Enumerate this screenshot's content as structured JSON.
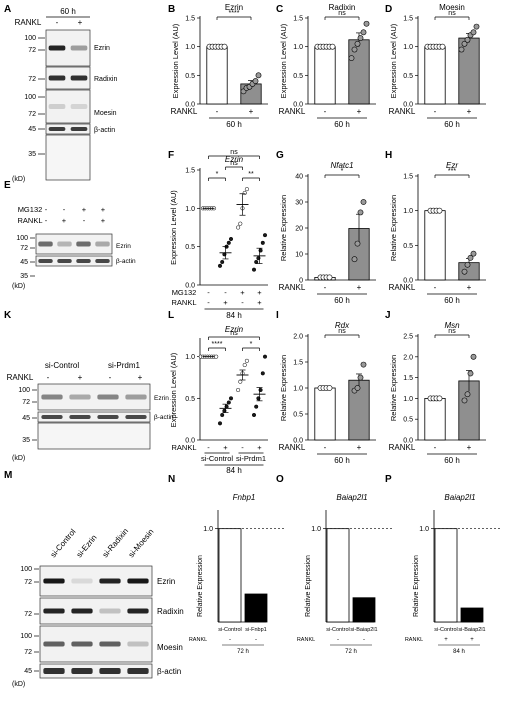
{
  "panel_letters": [
    "A",
    "B",
    "C",
    "D",
    "E",
    "F",
    "G",
    "H",
    "I",
    "J",
    "K",
    "L",
    "M",
    "N",
    "O",
    "P"
  ],
  "colors": {
    "control": "#ffffff",
    "treated_bar": "#8f8f8f",
    "i_j_bar": "#8f8f8f",
    "np_treated_bar": "#000000",
    "point_grey": "#9a9a9a",
    "point_black": "#1a1a1a"
  },
  "blot_A": {
    "time": "60 h",
    "rankl": "RANKL",
    "signs": [
      "-",
      "+"
    ],
    "markers": [
      {
        "label": "100"
      },
      {
        "label": "72"
      },
      {
        "label": "72"
      },
      {
        "label": "100"
      },
      {
        "label": "72"
      },
      {
        "label": "45"
      },
      {
        "label": "35"
      }
    ],
    "bands": [
      "Ezrin",
      "Radixin",
      "Moesin",
      "β-actin"
    ],
    "unit": "(kD)"
  },
  "blot_E": {
    "rows": [
      {
        "label": "MG132",
        "signs": [
          "-",
          "-",
          "+",
          "+"
        ]
      },
      {
        "label": "RANKL",
        "signs": [
          "-",
          "+",
          "-",
          "+"
        ]
      }
    ],
    "markers": [
      "100",
      "72",
      "45",
      "35"
    ],
    "bands": [
      "Ezrin",
      "β-actin"
    ],
    "unit": "(kD)"
  },
  "blot_K": {
    "groups": [
      "si-Control",
      "si-Prdm1"
    ],
    "rankl": "RANKL",
    "signs": [
      "-",
      "+",
      "-",
      "+"
    ],
    "markers": [
      "100",
      "72",
      "45",
      "35"
    ],
    "bands": [
      "Ezrin",
      "β-actin"
    ],
    "unit": "(kD)"
  },
  "blot_M": {
    "lanes": [
      "si-Control",
      "si-Ezrin",
      "si-Radixin",
      "si-Moesin"
    ],
    "markers": [
      "100",
      "72",
      "72",
      "100",
      "72",
      "45"
    ],
    "bands": [
      "Ezrin",
      "Radixin",
      "Moesin",
      "β-actin"
    ],
    "unit": "(kD)"
  },
  "chart_data": [
    {
      "panel": "B",
      "type": "bar",
      "title": "Ezrin",
      "ylabel": "Expression Level (AU)",
      "ylim": [
        0,
        1.5
      ],
      "yticks": [
        "0.0",
        "0.5",
        "1.0",
        "1.5"
      ],
      "categories": [
        "-",
        "+"
      ],
      "values": [
        1.0,
        0.35
      ],
      "errors": [
        0,
        0.06
      ],
      "sig": "****",
      "xrow_label": "RANKL",
      "time": "60 h",
      "points": [
        [
          1,
          1,
          1,
          1,
          1,
          1
        ],
        [
          0.22,
          0.28,
          0.3,
          0.35,
          0.4,
          0.5
        ]
      ]
    },
    {
      "panel": "C",
      "type": "bar",
      "title": "Radixin",
      "ylabel": "Expression Level (AU)",
      "ylim": [
        0,
        1.5
      ],
      "yticks": [
        "0.0",
        "0.5",
        "1.0",
        "1.5"
      ],
      "categories": [
        "-",
        "+"
      ],
      "values": [
        1.0,
        1.12
      ],
      "errors": [
        0,
        0.12
      ],
      "sig": "ns",
      "xrow_label": "RANKL",
      "time": "60 h",
      "points": [
        [
          1,
          1,
          1,
          1,
          1,
          1
        ],
        [
          0.8,
          0.95,
          1.05,
          1.15,
          1.25,
          1.4
        ]
      ]
    },
    {
      "panel": "D",
      "type": "bar",
      "title": "Moesin",
      "ylabel": "Expression Level (AU)",
      "ylim": [
        0,
        1.5
      ],
      "yticks": [
        "0.0",
        "0.5",
        "1.0",
        "1.5"
      ],
      "categories": [
        "-",
        "+"
      ],
      "values": [
        1.0,
        1.15
      ],
      "errors": [
        0,
        0.08
      ],
      "sig": "ns",
      "xrow_label": "RANKL",
      "time": "60 h",
      "points": [
        [
          1,
          1,
          1,
          1,
          1,
          1
        ],
        [
          0.95,
          1.05,
          1.12,
          1.2,
          1.25,
          1.35
        ]
      ]
    },
    {
      "panel": "F",
      "type": "scatter",
      "title": "Ezrin",
      "ylabel": "Expression Level (AU)",
      "ylim": [
        0,
        1.5
      ],
      "yticks": [
        "0.0",
        "0.5",
        "1.0",
        "1.5"
      ],
      "rows": [
        {
          "label": "MG132",
          "signs": [
            "-",
            "-",
            "+",
            "+"
          ]
        },
        {
          "label": "RANKL",
          "signs": [
            "-",
            "+",
            "-",
            "+"
          ]
        }
      ],
      "time": "84 h",
      "means": [
        1.0,
        0.42,
        1.05,
        0.38
      ],
      "sems": [
        0,
        0.08,
        0.14,
        0.1
      ],
      "points": [
        [
          1,
          1,
          1,
          1,
          1,
          1
        ],
        [
          0.25,
          0.3,
          0.4,
          0.5,
          0.55,
          0.6
        ],
        [
          0.75,
          0.8,
          1.0,
          1.2,
          1.25
        ],
        [
          0.2,
          0.3,
          0.35,
          0.45,
          0.55,
          0.65
        ]
      ],
      "sigs": [
        {
          "a": 0,
          "b": 1,
          "label": "*",
          "level": 1
        },
        {
          "a": 1,
          "b": 2,
          "label": "ns",
          "level": 2
        },
        {
          "a": 2,
          "b": 3,
          "label": "**",
          "level": 1
        },
        {
          "a": 0,
          "b": 3,
          "label": "ns",
          "level": 3
        }
      ]
    },
    {
      "panel": "G",
      "type": "bar",
      "title": "Nfatc1",
      "ylabel": "Relative Expression",
      "ylim": [
        0,
        40
      ],
      "yticks": [
        "0",
        "10",
        "20",
        "30",
        "40"
      ],
      "categories": [
        "-",
        "+"
      ],
      "values": [
        1.0,
        19.8
      ],
      "errors": [
        0,
        5.5
      ],
      "sig": "*",
      "xrow_label": "RANKL",
      "time": "60 h",
      "points": [
        [
          1,
          1,
          1,
          1
        ],
        [
          8,
          14,
          26,
          30
        ]
      ]
    },
    {
      "panel": "H",
      "type": "bar",
      "title": "Ezr",
      "ylabel": "Relative Expression",
      "ylim": [
        0,
        1.5
      ],
      "yticks": [
        "0.0",
        "0.5",
        "1.0",
        "1.5"
      ],
      "categories": [
        "-",
        "+"
      ],
      "values": [
        1.0,
        0.25
      ],
      "errors": [
        0,
        0.06
      ],
      "sig": "***",
      "xrow_label": "RANKL",
      "time": "60 h",
      "points": [
        [
          1,
          1,
          1,
          1
        ],
        [
          0.12,
          0.22,
          0.32,
          0.38
        ]
      ]
    },
    {
      "panel": "L",
      "type": "scatter",
      "title": "Ezrin",
      "ylabel": "Expression Level (AU)",
      "ylim": [
        0,
        1.2
      ],
      "yticks": [
        "0.0",
        "0.5",
        "1.0"
      ],
      "groups": [
        "si-Control",
        "si-Prdm1"
      ],
      "signs": [
        "-",
        "+",
        "-",
        "+"
      ],
      "xrow_label": "RANKL",
      "time": "84 h",
      "means": [
        1.0,
        0.38,
        0.78,
        0.55
      ],
      "sems": [
        0,
        0.05,
        0.06,
        0.08
      ],
      "points": [
        [
          1,
          1,
          1,
          1,
          1,
          1,
          1,
          1
        ],
        [
          0.2,
          0.3,
          0.35,
          0.4,
          0.45,
          0.5
        ],
        [
          0.6,
          0.7,
          0.8,
          0.9,
          0.95
        ],
        [
          0.3,
          0.4,
          0.5,
          0.6,
          0.8,
          1.0
        ]
      ],
      "sigs": [
        {
          "a": 0,
          "b": 1,
          "label": "****",
          "level": 1
        },
        {
          "a": 2,
          "b": 3,
          "label": "*",
          "level": 1
        },
        {
          "a": 0,
          "b": 3,
          "label": "ns",
          "level": 2
        }
      ]
    },
    {
      "panel": "I",
      "type": "bar",
      "title": "Rdx",
      "ylabel": "Relative Expression",
      "ylim": [
        0,
        2.0
      ],
      "yticks": [
        "0.0",
        "0.5",
        "1.0",
        "1.5",
        "2.0"
      ],
      "categories": [
        "-",
        "+"
      ],
      "values": [
        1.0,
        1.15
      ],
      "errors": [
        0,
        0.12
      ],
      "sig": "ns",
      "xrow_label": "RANKL",
      "time": "60 h",
      "points": [
        [
          1,
          1,
          1,
          1
        ],
        [
          0.95,
          1.0,
          1.2,
          1.45
        ]
      ]
    },
    {
      "panel": "J",
      "type": "bar",
      "title": "Msn",
      "ylabel": "Relative Expression",
      "ylim": [
        0,
        2.5
      ],
      "yticks": [
        "0.0",
        "0.5",
        "1.0",
        "1.5",
        "2.0",
        "2.5"
      ],
      "categories": [
        "-",
        "+"
      ],
      "values": [
        1.0,
        1.42
      ],
      "errors": [
        0,
        0.25
      ],
      "sig": "ns",
      "xrow_label": "RANKL",
      "time": "60 h",
      "points": [
        [
          1,
          1,
          1,
          1
        ],
        [
          0.95,
          1.1,
          1.6,
          2.0
        ]
      ]
    },
    {
      "panel": "N",
      "type": "bar",
      "title": "Fnbp1",
      "ylabel": "Relative Expression",
      "ylim": [
        0,
        1.2
      ],
      "yticks": [
        "1.0"
      ],
      "categories": [
        "si-Control",
        "si-Fnbp1"
      ],
      "values": [
        1.0,
        0.3
      ],
      "rankl_label": "RANKL",
      "rankl_signs": [
        "-",
        "-"
      ],
      "time": "72 h"
    },
    {
      "panel": "O",
      "type": "bar",
      "title": "Baiap2l1",
      "ylabel": "Relative Expression",
      "ylim": [
        0,
        1.2
      ],
      "yticks": [
        "1.0"
      ],
      "categories": [
        "si-Control",
        "si-Baiap2l1"
      ],
      "values": [
        1.0,
        0.26
      ],
      "rankl_label": "RANKL",
      "rankl_signs": [
        "-",
        "-"
      ],
      "time": "72 h"
    },
    {
      "panel": "P",
      "type": "bar",
      "title": "Baiap2l1",
      "ylabel": "Relative Expression",
      "ylim": [
        0,
        1.2
      ],
      "yticks": [
        "1.0"
      ],
      "categories": [
        "si-Control",
        "si-Baiap2l1"
      ],
      "values": [
        1.0,
        0.15
      ],
      "rankl_label": "RANKL",
      "rankl_signs": [
        "+",
        "+"
      ],
      "time": "84 h"
    }
  ]
}
